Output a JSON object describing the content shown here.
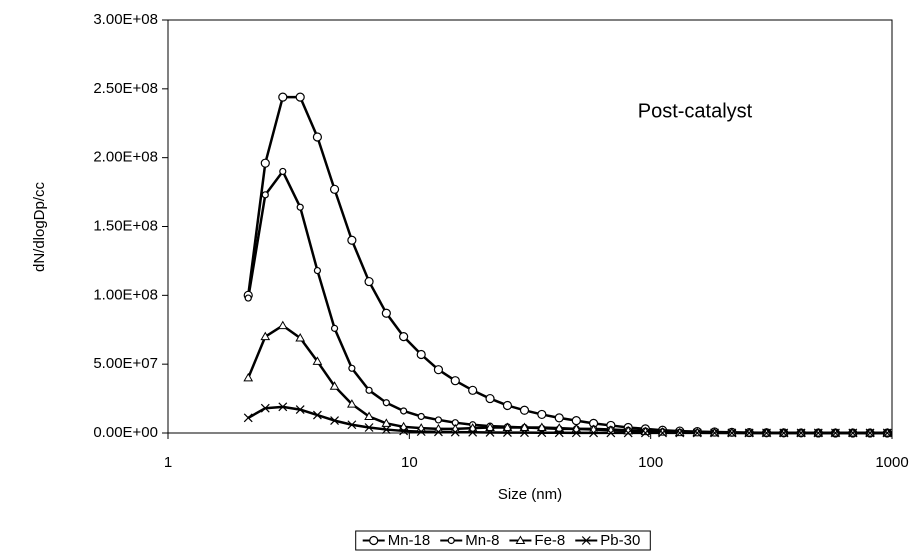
{
  "chart_data": {
    "type": "line",
    "ylabel": "dN/dlogDp/cc",
    "xlabel": "Size (nm)",
    "annotation": "Post-catalyst",
    "xscale": "log",
    "xlim": [
      1,
      1000
    ],
    "xticks": [
      1,
      10,
      100,
      1000
    ],
    "ylim": [
      0,
      300000000
    ],
    "yticks": [
      {
        "value": 0,
        "label": "0.00E+00"
      },
      {
        "value": 50000000,
        "label": "5.00E+07"
      },
      {
        "value": 100000000,
        "label": "1.00E+08"
      },
      {
        "value": 150000000,
        "label": "1.50E+08"
      },
      {
        "value": 200000000,
        "label": "2.00E+08"
      },
      {
        "value": 250000000,
        "label": "2.50E+08"
      },
      {
        "value": 300000000,
        "label": "3.00E+08"
      }
    ],
    "legend": "bottom",
    "x": [
      2.15,
      2.53,
      2.99,
      3.53,
      4.16,
      4.9,
      5.78,
      6.81,
      8.03,
      9.47,
      11.2,
      13.2,
      15.5,
      18.3,
      21.6,
      25.5,
      30.0,
      35.4,
      41.8,
      49.2,
      58.0,
      68.4,
      80.7,
      95.1,
      112,
      132,
      156,
      184,
      217,
      256,
      302,
      356,
      420,
      495,
      583,
      688,
      811,
      956
    ],
    "series": [
      {
        "name": "Mn-18",
        "color": "#000000",
        "marker": "circle",
        "values": [
          100000000.0,
          196000000.0,
          244000000.0,
          244000000.0,
          215000000.0,
          177000000.0,
          140000000.0,
          110000000.0,
          87000000.0,
          70000000.0,
          57000000.0,
          46000000.0,
          38000000.0,
          31000000.0,
          25000000.0,
          20000000.0,
          16500000.0,
          13500000.0,
          11000000.0,
          9000000.0,
          7000000.0,
          5500000.0,
          4000000.0,
          3000000.0,
          2000000.0,
          1400000.0,
          1000000.0,
          700000.0,
          500000.0,
          300000.0,
          200000.0,
          100000.0,
          50000.0,
          30000.0,
          20000.0,
          10000.0,
          10000.0,
          10000.0
        ]
      },
      {
        "name": "Mn-8",
        "color": "#000000",
        "marker": "dot",
        "values": [
          98000000.0,
          173000000.0,
          190000000.0,
          164000000.0,
          118000000.0,
          76000000.0,
          47000000.0,
          31000000.0,
          22000000.0,
          16000000.0,
          12000000.0,
          9500000.0,
          7500000.0,
          6000000.0,
          5000000.0,
          4500000.0,
          4000000.0,
          3500000.0,
          3000000.0,
          3000000.0,
          3000000.0,
          2500000.0,
          2000000.0,
          1500000.0,
          1000000.0,
          600000.0,
          300000.0,
          200000.0,
          100000.0,
          50000.0,
          30000.0,
          20000.0,
          10000.0,
          10000.0,
          10000.0,
          10000.0,
          10000.0,
          10000.0
        ]
      },
      {
        "name": "Fe-8",
        "color": "#000000",
        "marker": "triangle",
        "values": [
          40000000.0,
          70000000.0,
          78000000.0,
          69000000.0,
          52000000.0,
          34000000.0,
          21000000.0,
          12000000.0,
          7000000.0,
          4500000.0,
          3500000.0,
          3000000.0,
          3000000.0,
          3500000.0,
          4000000.0,
          4000000.0,
          4000000.0,
          4000000.0,
          3500000.0,
          3000000.0,
          2500000.0,
          2000000.0,
          1500000.0,
          1000000.0,
          600000.0,
          300000.0,
          200000.0,
          100000.0,
          50000.0,
          30000.0,
          20000.0,
          10000.0,
          10000.0,
          10000.0,
          10000.0,
          10000.0,
          10000.0,
          10000.0
        ]
      },
      {
        "name": "Pb-30",
        "color": "#000000",
        "marker": "cross",
        "values": [
          11000000.0,
          18000000.0,
          19000000.0,
          17000000.0,
          13000000.0,
          9000000.0,
          6000000.0,
          4000000.0,
          2500000.0,
          1500000.0,
          1000000.0,
          800000.0,
          600000.0,
          500000.0,
          400000.0,
          300000.0,
          250000.0,
          200000.0,
          150000.0,
          100000.0,
          50000.0,
          50000.0,
          50000.0,
          50000.0,
          50000.0,
          50000.0,
          50000.0,
          50000.0,
          50000.0,
          50000.0,
          50000.0,
          50000.0,
          50000.0,
          50000.0,
          50000.0,
          50000.0,
          50000.0,
          50000.0
        ]
      }
    ]
  }
}
